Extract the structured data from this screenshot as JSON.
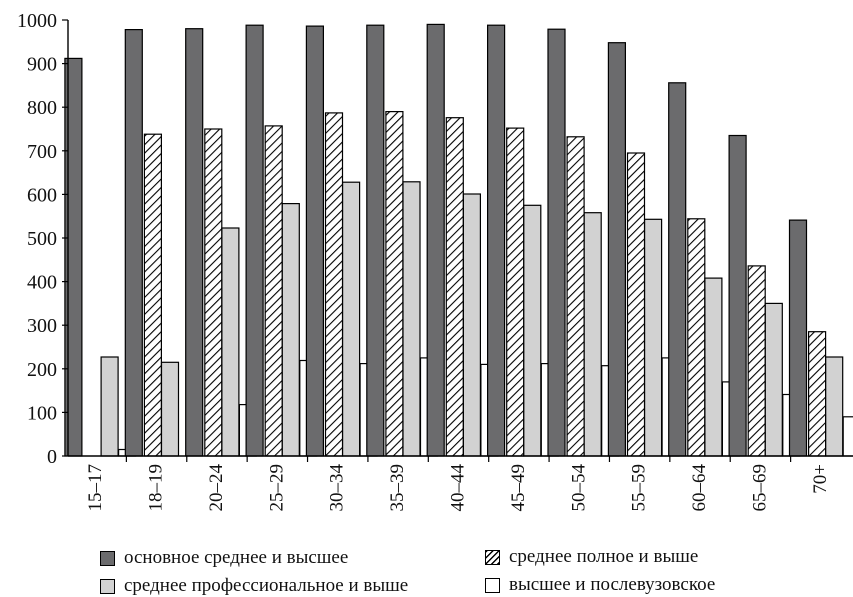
{
  "chart_data": {
    "type": "bar",
    "categories": [
      "15–17",
      "18–19",
      "20–24",
      "25–29",
      "30–34",
      "35–39",
      "40–44",
      "45–49",
      "50–54",
      "55–59",
      "60–64",
      "65–69",
      "70+"
    ],
    "series": [
      {
        "name": "основное среднее и высшее",
        "values": [
          912,
          978,
          980,
          988,
          986,
          988,
          990,
          988,
          979,
          948,
          856,
          735,
          541
        ],
        "fill": "#6b6b6d",
        "pattern": "solid"
      },
      {
        "name": "среднее полное и выше",
        "values": [
          0,
          738,
          750,
          757,
          787,
          790,
          776,
          752,
          732,
          695,
          544,
          436,
          285
        ],
        "fill": "#ffffff",
        "pattern": "hatch"
      },
      {
        "name": "среднее профессиональное и выше",
        "values": [
          227,
          215,
          523,
          579,
          628,
          629,
          601,
          575,
          558,
          543,
          408,
          350,
          227
        ],
        "fill": "#d2d2d2",
        "pattern": "solid"
      },
      {
        "name": "высшее и послевузовское",
        "values": [
          15,
          0,
          118,
          219,
          212,
          225,
          210,
          212,
          207,
          225,
          170,
          141,
          90
        ],
        "fill": "#ffffff",
        "pattern": "solid"
      }
    ],
    "yticks": [
      0,
      100,
      200,
      300,
      400,
      500,
      600,
      700,
      800,
      900,
      1000
    ],
    "ylim": [
      0,
      1000
    ],
    "title": "",
    "xlabel": "",
    "ylabel": "",
    "grid": false,
    "legend_position": "bottom",
    "legend_layout": [
      "основное среднее и высшее",
      "среднее полное и выше",
      "среднее профессиональное и выше",
      "высшее и послевузовское"
    ]
  }
}
